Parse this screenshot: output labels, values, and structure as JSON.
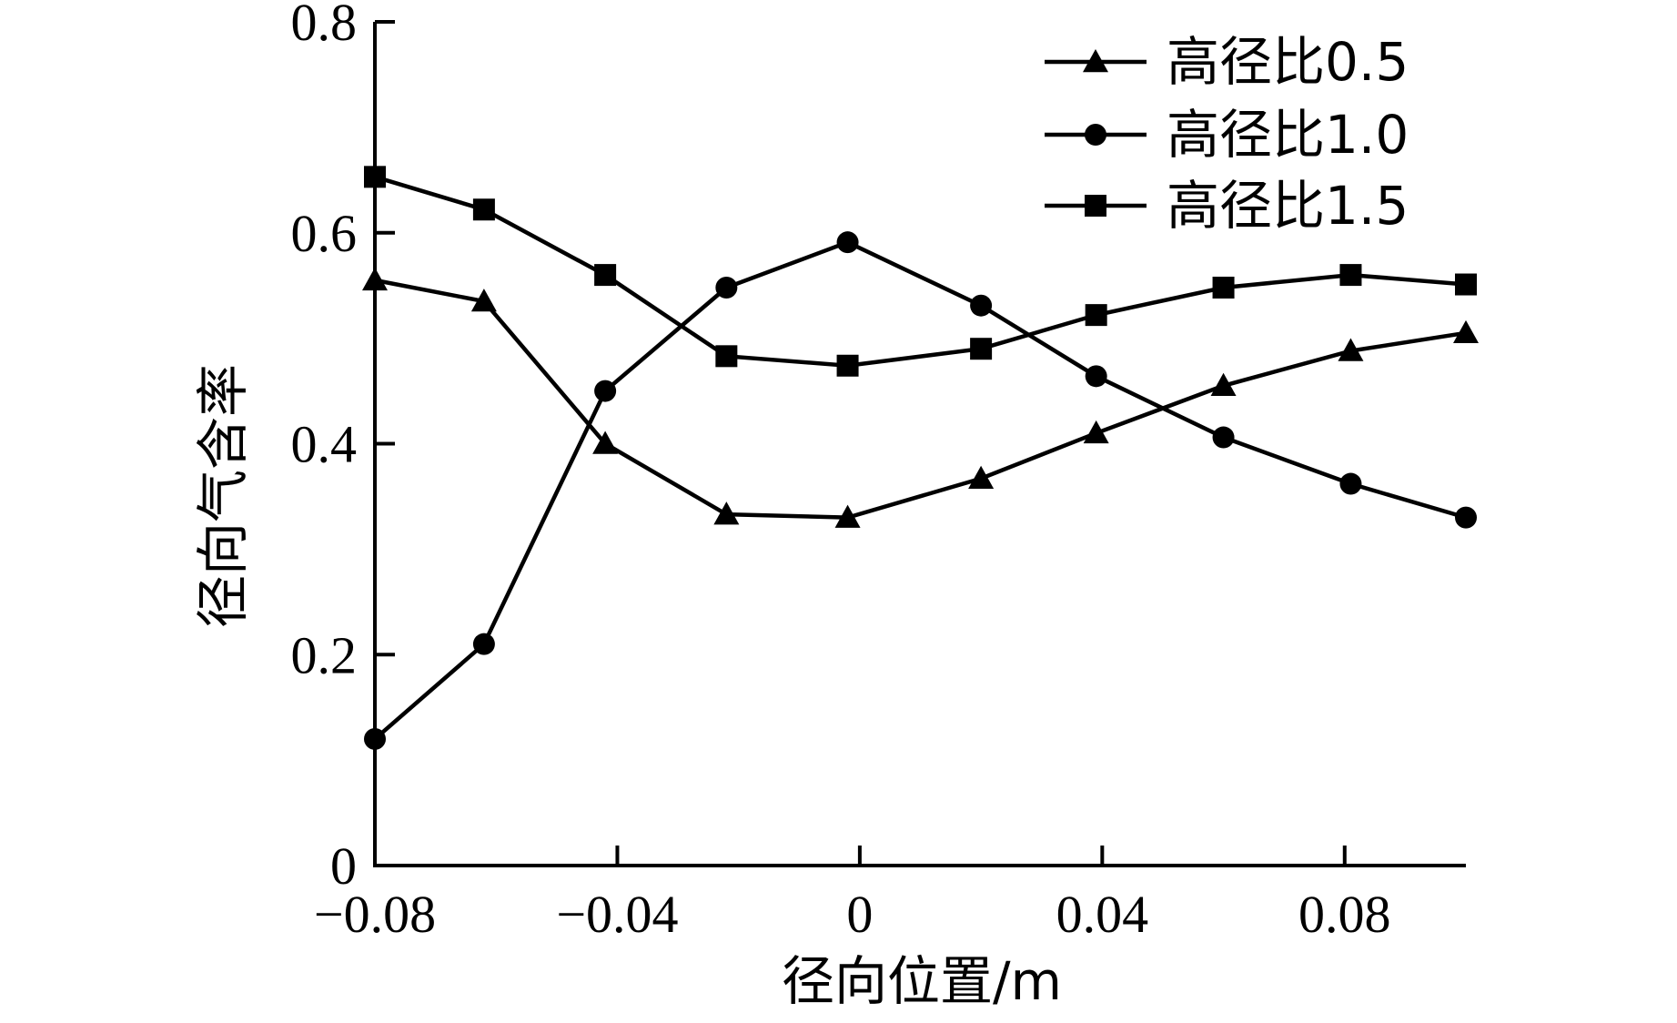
{
  "chart_data": {
    "type": "line",
    "title": "",
    "xlabel": "径向位置/m",
    "ylabel": "径向气含率",
    "xlim": [
      -0.08,
      0.1
    ],
    "ylim": [
      0,
      0.8
    ],
    "x_ticks": [
      "−0.08",
      "−0.04",
      "0",
      "0.04",
      "0.08"
    ],
    "x_tick_values": [
      -0.08,
      -0.04,
      0,
      0.04,
      0.08
    ],
    "y_ticks": [
      "0",
      "0.2",
      "0.4",
      "0.6",
      "0.8"
    ],
    "y_tick_values": [
      0,
      0.2,
      0.4,
      0.6,
      0.8
    ],
    "grid": false,
    "legend_position": "top-right",
    "x": [
      -0.08,
      -0.062,
      -0.042,
      -0.022,
      -0.002,
      0.02,
      0.039,
      0.06,
      0.081,
      0.1
    ],
    "series": [
      {
        "name": "高径比0.5",
        "marker": "triangle",
        "color": "#000000",
        "values": [
          0.555,
          0.535,
          0.4,
          0.333,
          0.33,
          0.367,
          0.41,
          0.455,
          0.488,
          0.505
        ]
      },
      {
        "name": "高径比1.0",
        "marker": "circle",
        "color": "#000000",
        "values": [
          0.12,
          0.21,
          0.45,
          0.548,
          0.591,
          0.531,
          0.464,
          0.406,
          0.362,
          0.33
        ]
      },
      {
        "name": "高径比1.5",
        "marker": "square",
        "color": "#000000",
        "values": [
          0.653,
          0.622,
          0.56,
          0.483,
          0.474,
          0.49,
          0.522,
          0.548,
          0.56,
          0.551
        ]
      }
    ]
  }
}
